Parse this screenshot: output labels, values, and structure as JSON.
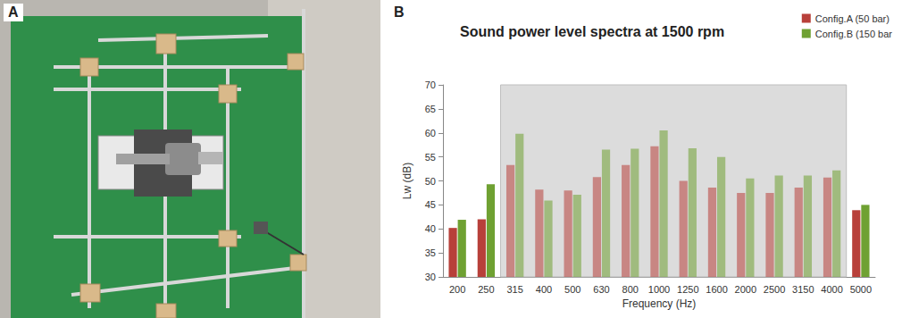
{
  "panel_labels": [
    "A",
    "B"
  ],
  "chart_data": {
    "type": "bar",
    "title": "Sound power level spectra at 1500 rpm",
    "x_label": "Frequency (Hz)",
    "y_label": "Lw (dB)",
    "categories": [
      "200",
      "250",
      "315",
      "400",
      "500",
      "630",
      "800",
      "1000",
      "1250",
      "1600",
      "2000",
      "2500",
      "3150",
      "4000",
      "5000"
    ],
    "series": [
      {
        "name": "Config.A (50 bar)",
        "color": "#b8403a",
        "values": [
          40.2,
          42,
          53.3,
          48.2,
          48,
          50.8,
          53.3,
          57.2,
          50,
          48.6,
          47.5,
          47.5,
          48.6,
          50.7,
          43.9
        ]
      },
      {
        "name": "Config.B (150 bar",
        "color": "#6fa132",
        "values": [
          41.9,
          49.3,
          59.8,
          45.9,
          47.1,
          56.5,
          56.7,
          60.5,
          56.8,
          55,
          50.5,
          51.1,
          51.1,
          52.2,
          45
        ]
      }
    ],
    "shaded_range": [
      "315",
      "4000"
    ],
    "ylim": [
      30,
      70
    ],
    "yticks": [
      30,
      35,
      40,
      45,
      50,
      55,
      60,
      65,
      70
    ],
    "grid": false,
    "legend": "top-right"
  }
}
